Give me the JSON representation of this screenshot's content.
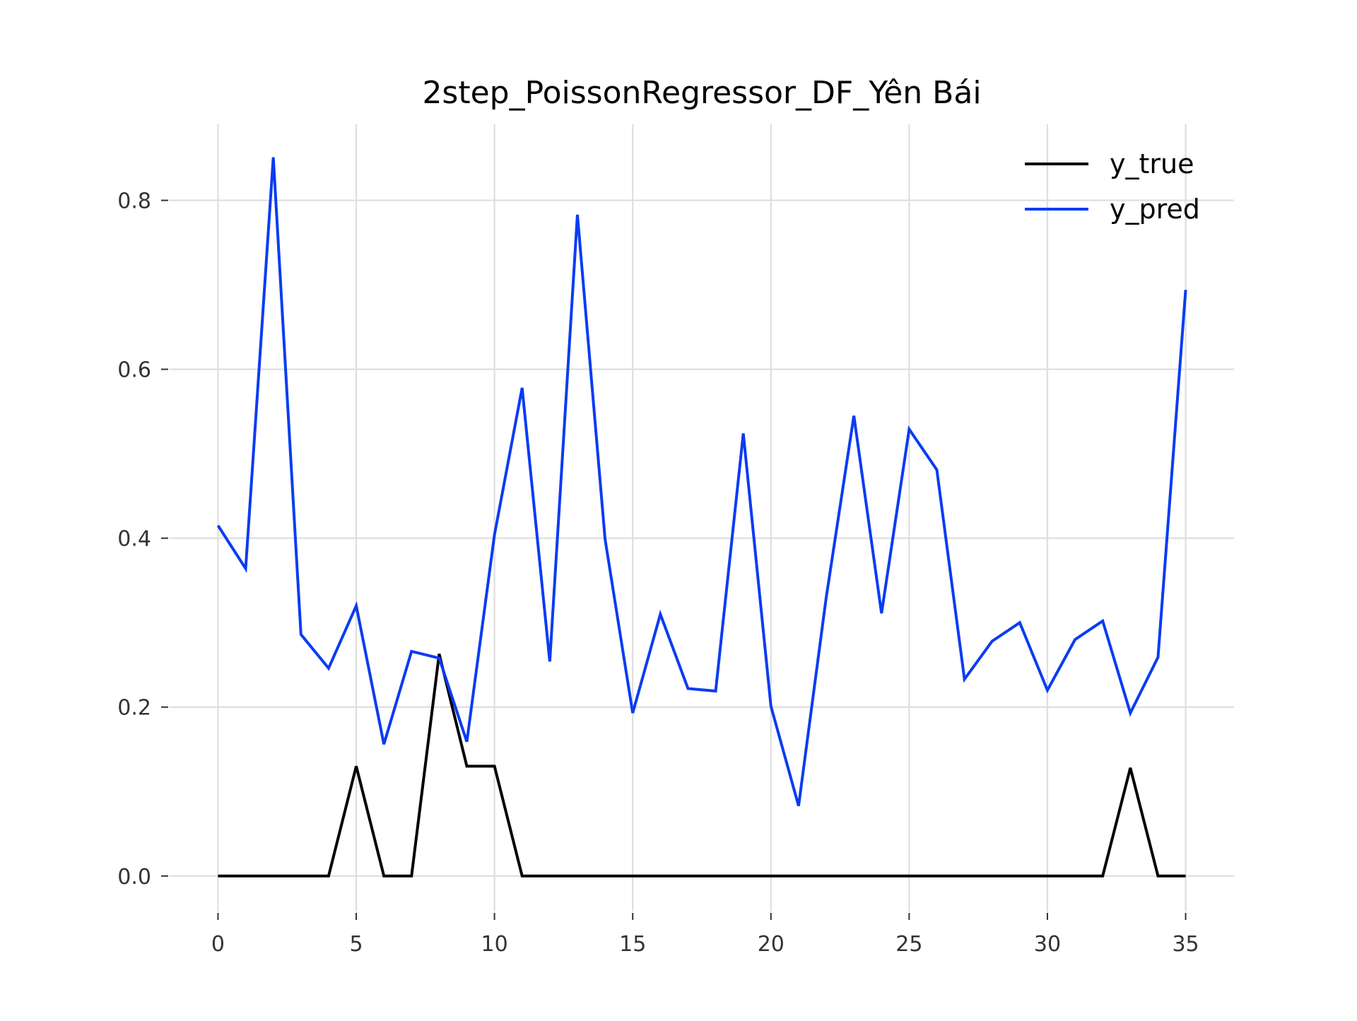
{
  "chart_data": {
    "type": "line",
    "title": "2step_PoissonRegressor_DF_Yên Bái",
    "xlabel": "",
    "ylabel": "",
    "xlim": [
      -1.75,
      36.75
    ],
    "ylim": [
      -0.042,
      0.89
    ],
    "grid": true,
    "legend_position": "top-right",
    "x_ticks": [
      0,
      5,
      10,
      15,
      20,
      25,
      30,
      35
    ],
    "x_tick_labels": [
      "0",
      "5",
      "10",
      "15",
      "20",
      "25",
      "30",
      "35"
    ],
    "y_ticks": [
      0.0,
      0.2,
      0.4,
      0.6,
      0.8
    ],
    "y_tick_labels": [
      "0.0",
      "0.2",
      "0.4",
      "0.6",
      "0.8"
    ],
    "x": [
      0,
      1,
      2,
      3,
      4,
      5,
      6,
      7,
      8,
      9,
      10,
      11,
      12,
      13,
      14,
      15,
      16,
      17,
      18,
      19,
      20,
      21,
      22,
      23,
      24,
      25,
      26,
      27,
      28,
      29,
      30,
      31,
      32,
      33,
      34,
      35
    ],
    "series": [
      {
        "name": "y_true",
        "color": "#000000",
        "values": [
          0,
          0,
          0,
          0,
          0,
          0.13,
          0,
          0,
          0.263,
          0.13,
          0.13,
          0,
          0,
          0,
          0,
          0,
          0,
          0,
          0,
          0,
          0,
          0,
          0,
          0,
          0,
          0,
          0,
          0,
          0,
          0,
          0,
          0,
          0,
          0.128,
          0,
          0
        ]
      },
      {
        "name": "y_pred",
        "color": "#0a3cf2",
        "values": [
          0.415,
          0.364,
          0.851,
          0.286,
          0.246,
          0.32,
          0.156,
          0.266,
          0.258,
          0.159,
          0.404,
          0.578,
          0.254,
          0.783,
          0.399,
          0.193,
          0.31,
          0.222,
          0.219,
          0.524,
          0.201,
          0.083,
          0.33,
          0.545,
          0.311,
          0.529,
          0.481,
          0.233,
          0.278,
          0.3,
          0.22,
          0.28,
          0.302,
          0.193,
          0.259,
          0.694
        ]
      }
    ]
  }
}
